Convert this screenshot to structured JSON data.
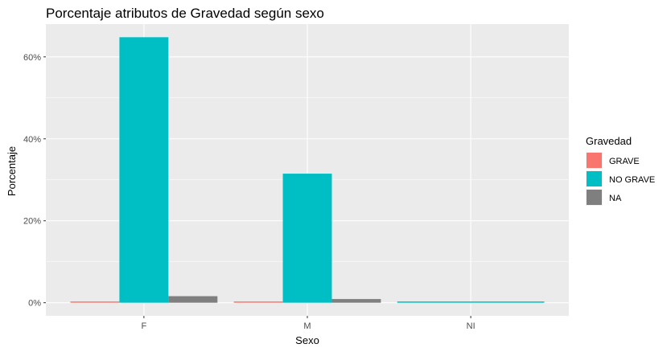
{
  "chart_data": {
    "type": "bar",
    "title": "Porcentaje atributos de Gravedad según sexo",
    "xlabel": "Sexo",
    "ylabel": "Porcentaje",
    "categories": [
      "F",
      "M",
      "NI"
    ],
    "ylim": [
      -0.032,
      0.68
    ],
    "yticks": [
      0,
      0.2,
      0.4,
      0.6
    ],
    "ytick_labels": [
      "0%",
      "20%",
      "40%",
      "60%"
    ],
    "grid": true,
    "legend": {
      "title": "Gravedad",
      "position": "right"
    },
    "series": [
      {
        "name": "GRAVE",
        "color": "#F8766D",
        "values": [
          0.003,
          0.003,
          null
        ]
      },
      {
        "name": "NO GRAVE",
        "color": "#00BFC4",
        "values": [
          0.648,
          0.315,
          0.003
        ]
      },
      {
        "name": "NA",
        "color": "#7F7F7F",
        "values": [
          0.016,
          0.009,
          null
        ]
      }
    ],
    "panel_background": "#EBEBEB"
  }
}
